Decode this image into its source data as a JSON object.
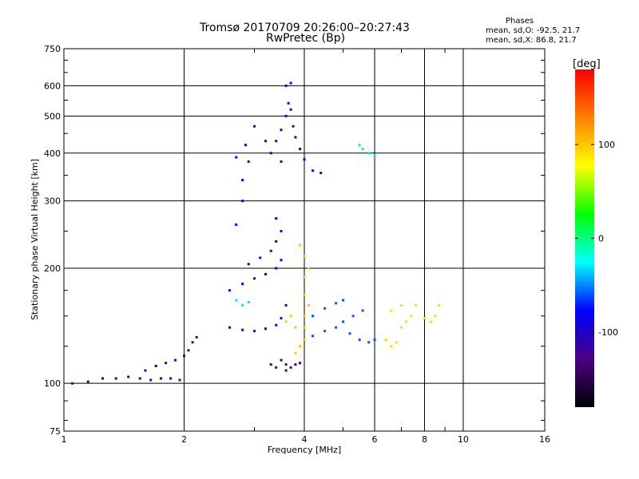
{
  "header": {
    "title_line1": "Tromsø 20170709 20:26:00–20:27:43",
    "title_line2": "RwPretec (Bp)",
    "phase_heading": "Phases",
    "phase_o": "mean, sd,O: -92.5, 21.7",
    "phase_x": "mean, sd,X:  86.8, 21.7"
  },
  "chart_data": {
    "type": "scatter",
    "xlabel": "Frequency [MHz]",
    "ylabel": "Stationary phase Virtual Height [km]",
    "x_scale": "log",
    "y_scale": "log",
    "xlim": [
      1,
      16
    ],
    "ylim": [
      75,
      750
    ],
    "x_ticks": [
      1,
      2,
      4,
      6,
      8,
      10,
      16
    ],
    "x_minor_ticks": [
      3,
      5,
      7,
      9
    ],
    "y_ticks": [
      75,
      100,
      200,
      300,
      400,
      500,
      600,
      750
    ],
    "y_minor_ticks": [
      80,
      90,
      125,
      150,
      175,
      250,
      350,
      450,
      550,
      650,
      700
    ],
    "grid": true,
    "colorbar": {
      "label": "[deg]",
      "range": [
        -180,
        180
      ],
      "ticks": [
        100,
        0,
        -100
      ],
      "colors": [
        "#000000",
        "#4b0082",
        "#0000ff",
        "#00ffff",
        "#00ff00",
        "#ffff00",
        "#ff8000",
        "#ff0000"
      ]
    },
    "series": [
      {
        "phase": -110,
        "points": [
          [
            1.05,
            100
          ],
          [
            1.15,
            101
          ],
          [
            1.25,
            103
          ],
          [
            1.35,
            103
          ],
          [
            1.45,
            104
          ],
          [
            1.55,
            103
          ],
          [
            1.65,
            102
          ],
          [
            1.75,
            103
          ],
          [
            1.85,
            103
          ],
          [
            1.95,
            102
          ],
          [
            1.6,
            108
          ],
          [
            1.7,
            111
          ],
          [
            1.8,
            113
          ],
          [
            1.9,
            115
          ],
          [
            2.0,
            118
          ],
          [
            2.05,
            122
          ],
          [
            2.1,
            128
          ],
          [
            2.15,
            132
          ]
        ]
      },
      {
        "phase": -100,
        "points": [
          [
            2.6,
            140
          ],
          [
            2.8,
            138
          ],
          [
            3.0,
            137
          ],
          [
            3.2,
            139
          ],
          [
            3.4,
            142
          ],
          [
            3.5,
            148
          ],
          [
            3.6,
            160
          ],
          [
            2.6,
            175
          ],
          [
            2.8,
            182
          ],
          [
            3.0,
            188
          ],
          [
            3.2,
            193
          ],
          [
            3.4,
            200
          ],
          [
            3.5,
            210
          ],
          [
            2.9,
            205
          ],
          [
            3.1,
            213
          ],
          [
            3.3,
            222
          ],
          [
            3.4,
            235
          ],
          [
            3.5,
            250
          ],
          [
            3.4,
            270
          ]
        ]
      },
      {
        "phase": -95,
        "points": [
          [
            3.4,
            430
          ],
          [
            3.5,
            460
          ],
          [
            3.6,
            500
          ],
          [
            3.65,
            540
          ],
          [
            3.6,
            600
          ],
          [
            3.7,
            610
          ],
          [
            3.7,
            520
          ],
          [
            3.75,
            470
          ],
          [
            3.8,
            440
          ],
          [
            3.9,
            410
          ],
          [
            4.0,
            385
          ],
          [
            4.2,
            360
          ],
          [
            4.4,
            355
          ],
          [
            3.5,
            380
          ],
          [
            3.3,
            400
          ],
          [
            3.2,
            430
          ]
        ]
      },
      {
        "phase": -60,
        "points": [
          [
            4.0,
            130
          ],
          [
            4.2,
            133
          ],
          [
            4.5,
            137
          ],
          [
            4.8,
            140
          ],
          [
            5.0,
            145
          ],
          [
            5.3,
            150
          ],
          [
            5.6,
            155
          ],
          [
            4.2,
            150
          ],
          [
            4.5,
            157
          ],
          [
            4.8,
            162
          ],
          [
            5.0,
            165
          ],
          [
            5.2,
            135
          ],
          [
            5.5,
            130
          ],
          [
            5.8,
            128
          ],
          [
            6.0,
            130
          ]
        ]
      },
      {
        "phase": -120,
        "points": [
          [
            3.5,
            115
          ],
          [
            3.6,
            112
          ],
          [
            3.7,
            110
          ],
          [
            3.8,
            112
          ],
          [
            3.9,
            113
          ],
          [
            3.6,
            108
          ],
          [
            3.4,
            110
          ],
          [
            3.3,
            112
          ]
        ]
      },
      {
        "phase": 100,
        "points": [
          [
            3.8,
            120
          ],
          [
            3.9,
            125
          ],
          [
            4.0,
            130
          ],
          [
            4.0,
            140
          ],
          [
            4.0,
            150
          ],
          [
            4.1,
            160
          ],
          [
            4.0,
            170
          ],
          [
            4.0,
            190
          ],
          [
            4.1,
            200
          ],
          [
            4.0,
            215
          ],
          [
            3.9,
            230
          ],
          [
            3.8,
            140
          ],
          [
            3.7,
            150
          ],
          [
            3.6,
            145
          ]
        ]
      },
      {
        "phase": 90,
        "points": [
          [
            6.4,
            130
          ],
          [
            6.6,
            125
          ],
          [
            6.8,
            128
          ],
          [
            7.0,
            140
          ],
          [
            7.2,
            145
          ],
          [
            7.4,
            150
          ],
          [
            7.6,
            160
          ],
          [
            8.0,
            148
          ],
          [
            8.3,
            145
          ],
          [
            8.5,
            150
          ],
          [
            8.7,
            160
          ],
          [
            7.0,
            160
          ],
          [
            6.6,
            155
          ]
        ]
      },
      {
        "phase": -90,
        "points": [
          [
            2.7,
            260
          ],
          [
            2.8,
            300
          ],
          [
            2.8,
            340
          ],
          [
            2.9,
            380
          ],
          [
            2.85,
            420
          ],
          [
            3.0,
            470
          ],
          [
            2.7,
            390
          ]
        ]
      },
      {
        "phase": -30,
        "points": [
          [
            2.8,
            160
          ],
          [
            2.9,
            163
          ],
          [
            2.7,
            165
          ],
          [
            5.5,
            420
          ],
          [
            5.6,
            410
          ],
          [
            5.8,
            400
          ],
          [
            6.0,
            395
          ]
        ]
      }
    ]
  }
}
